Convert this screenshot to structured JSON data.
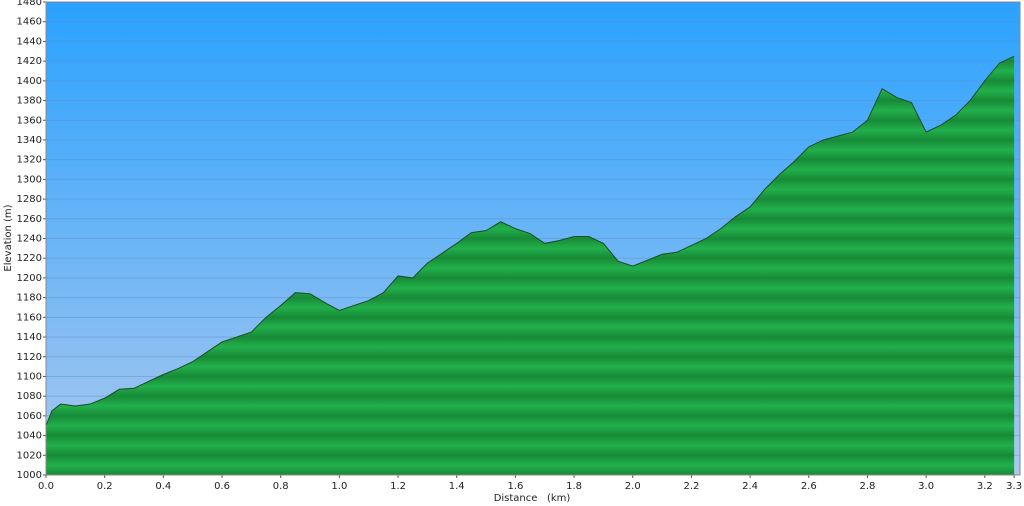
{
  "chart_data": {
    "type": "area",
    "xlabel": "Distance   (km)",
    "ylabel": "Elevation (m)",
    "x": [
      0,
      0.02,
      0.05,
      0.1,
      0.15,
      0.2,
      0.25,
      0.3,
      0.35,
      0.4,
      0.45,
      0.5,
      0.55,
      0.6,
      0.65,
      0.7,
      0.75,
      0.8,
      0.85,
      0.9,
      0.95,
      1.0,
      1.05,
      1.1,
      1.15,
      1.2,
      1.25,
      1.3,
      1.35,
      1.4,
      1.45,
      1.5,
      1.55,
      1.6,
      1.65,
      1.7,
      1.75,
      1.8,
      1.85,
      1.9,
      1.95,
      2.0,
      2.05,
      2.1,
      2.15,
      2.2,
      2.25,
      2.3,
      2.35,
      2.4,
      2.45,
      2.5,
      2.55,
      2.6,
      2.65,
      2.7,
      2.75,
      2.8,
      2.85,
      2.9,
      2.95,
      3.0,
      3.05,
      3.1,
      3.15,
      3.2,
      3.25,
      3.3
    ],
    "series": [
      {
        "name": "Elevation",
        "color": "#1fa945",
        "line_color": "#1d4a2a",
        "values": [
          1050,
          1065,
          1072,
          1070,
          1072,
          1078,
          1087,
          1088,
          1095,
          1102,
          1108,
          1115,
          1125,
          1135,
          1140,
          1145,
          1160,
          1172,
          1185,
          1184,
          1175,
          1167,
          1172,
          1177,
          1185,
          1202,
          1200,
          1215,
          1225,
          1235,
          1246,
          1248,
          1257,
          1250,
          1245,
          1235,
          1238,
          1242,
          1242,
          1235,
          1217,
          1212,
          1218,
          1224,
          1226,
          1233,
          1240,
          1250,
          1262,
          1272,
          1290,
          1305,
          1318,
          1333,
          1340,
          1344,
          1348,
          1360,
          1392,
          1383,
          1378,
          1348,
          1355,
          1365,
          1380,
          1400,
          1418,
          1425
        ]
      }
    ],
    "xlim": [
      0,
      3.32
    ],
    "xticks": [
      {
        "value": 0,
        "label": "0.0"
      },
      0.2,
      0.4,
      0.6,
      0.8,
      {
        "value": 1,
        "label": "1.0"
      },
      1.2,
      1.4,
      1.6,
      1.8,
      {
        "value": 2,
        "label": "2.0"
      },
      2.2,
      2.4,
      2.6,
      2.8,
      {
        "value": 3,
        "label": "3.0"
      },
      3.2,
      3.3
    ],
    "ylim": [
      1000,
      1480
    ],
    "yticks": [
      1000,
      1020,
      1040,
      1060,
      1080,
      1100,
      1120,
      1140,
      1160,
      1180,
      1200,
      1220,
      1240,
      1260,
      1280,
      1300,
      1320,
      1340,
      1360,
      1380,
      1400,
      1420,
      1440,
      1460,
      1480
    ],
    "grid": true
  }
}
